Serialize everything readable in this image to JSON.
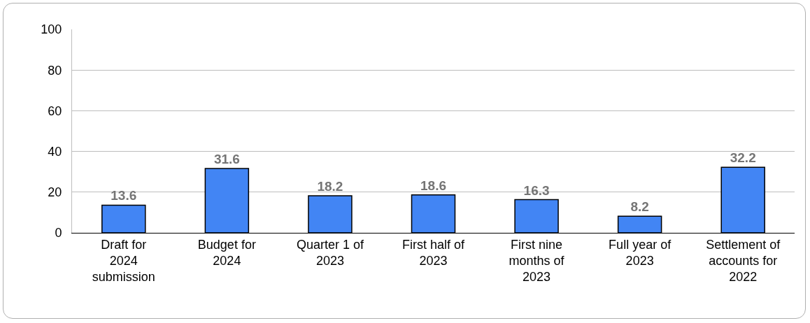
{
  "chart_data": {
    "type": "bar",
    "categories": [
      "Draft for 2024 submission",
      "Budget for 2024",
      "Quarter 1 of 2023",
      "First half of 2023",
      "First nine months of 2023",
      "Full year of 2023",
      "Settlement of accounts for 2022"
    ],
    "values": [
      13.6,
      31.6,
      18.2,
      18.6,
      16.3,
      8.2,
      32.2
    ],
    "color": "#4285f4",
    "ylim": [
      0,
      100
    ],
    "yticks": [
      0,
      20,
      40,
      60,
      80,
      100
    ],
    "grid": "y",
    "data_labels": true
  }
}
